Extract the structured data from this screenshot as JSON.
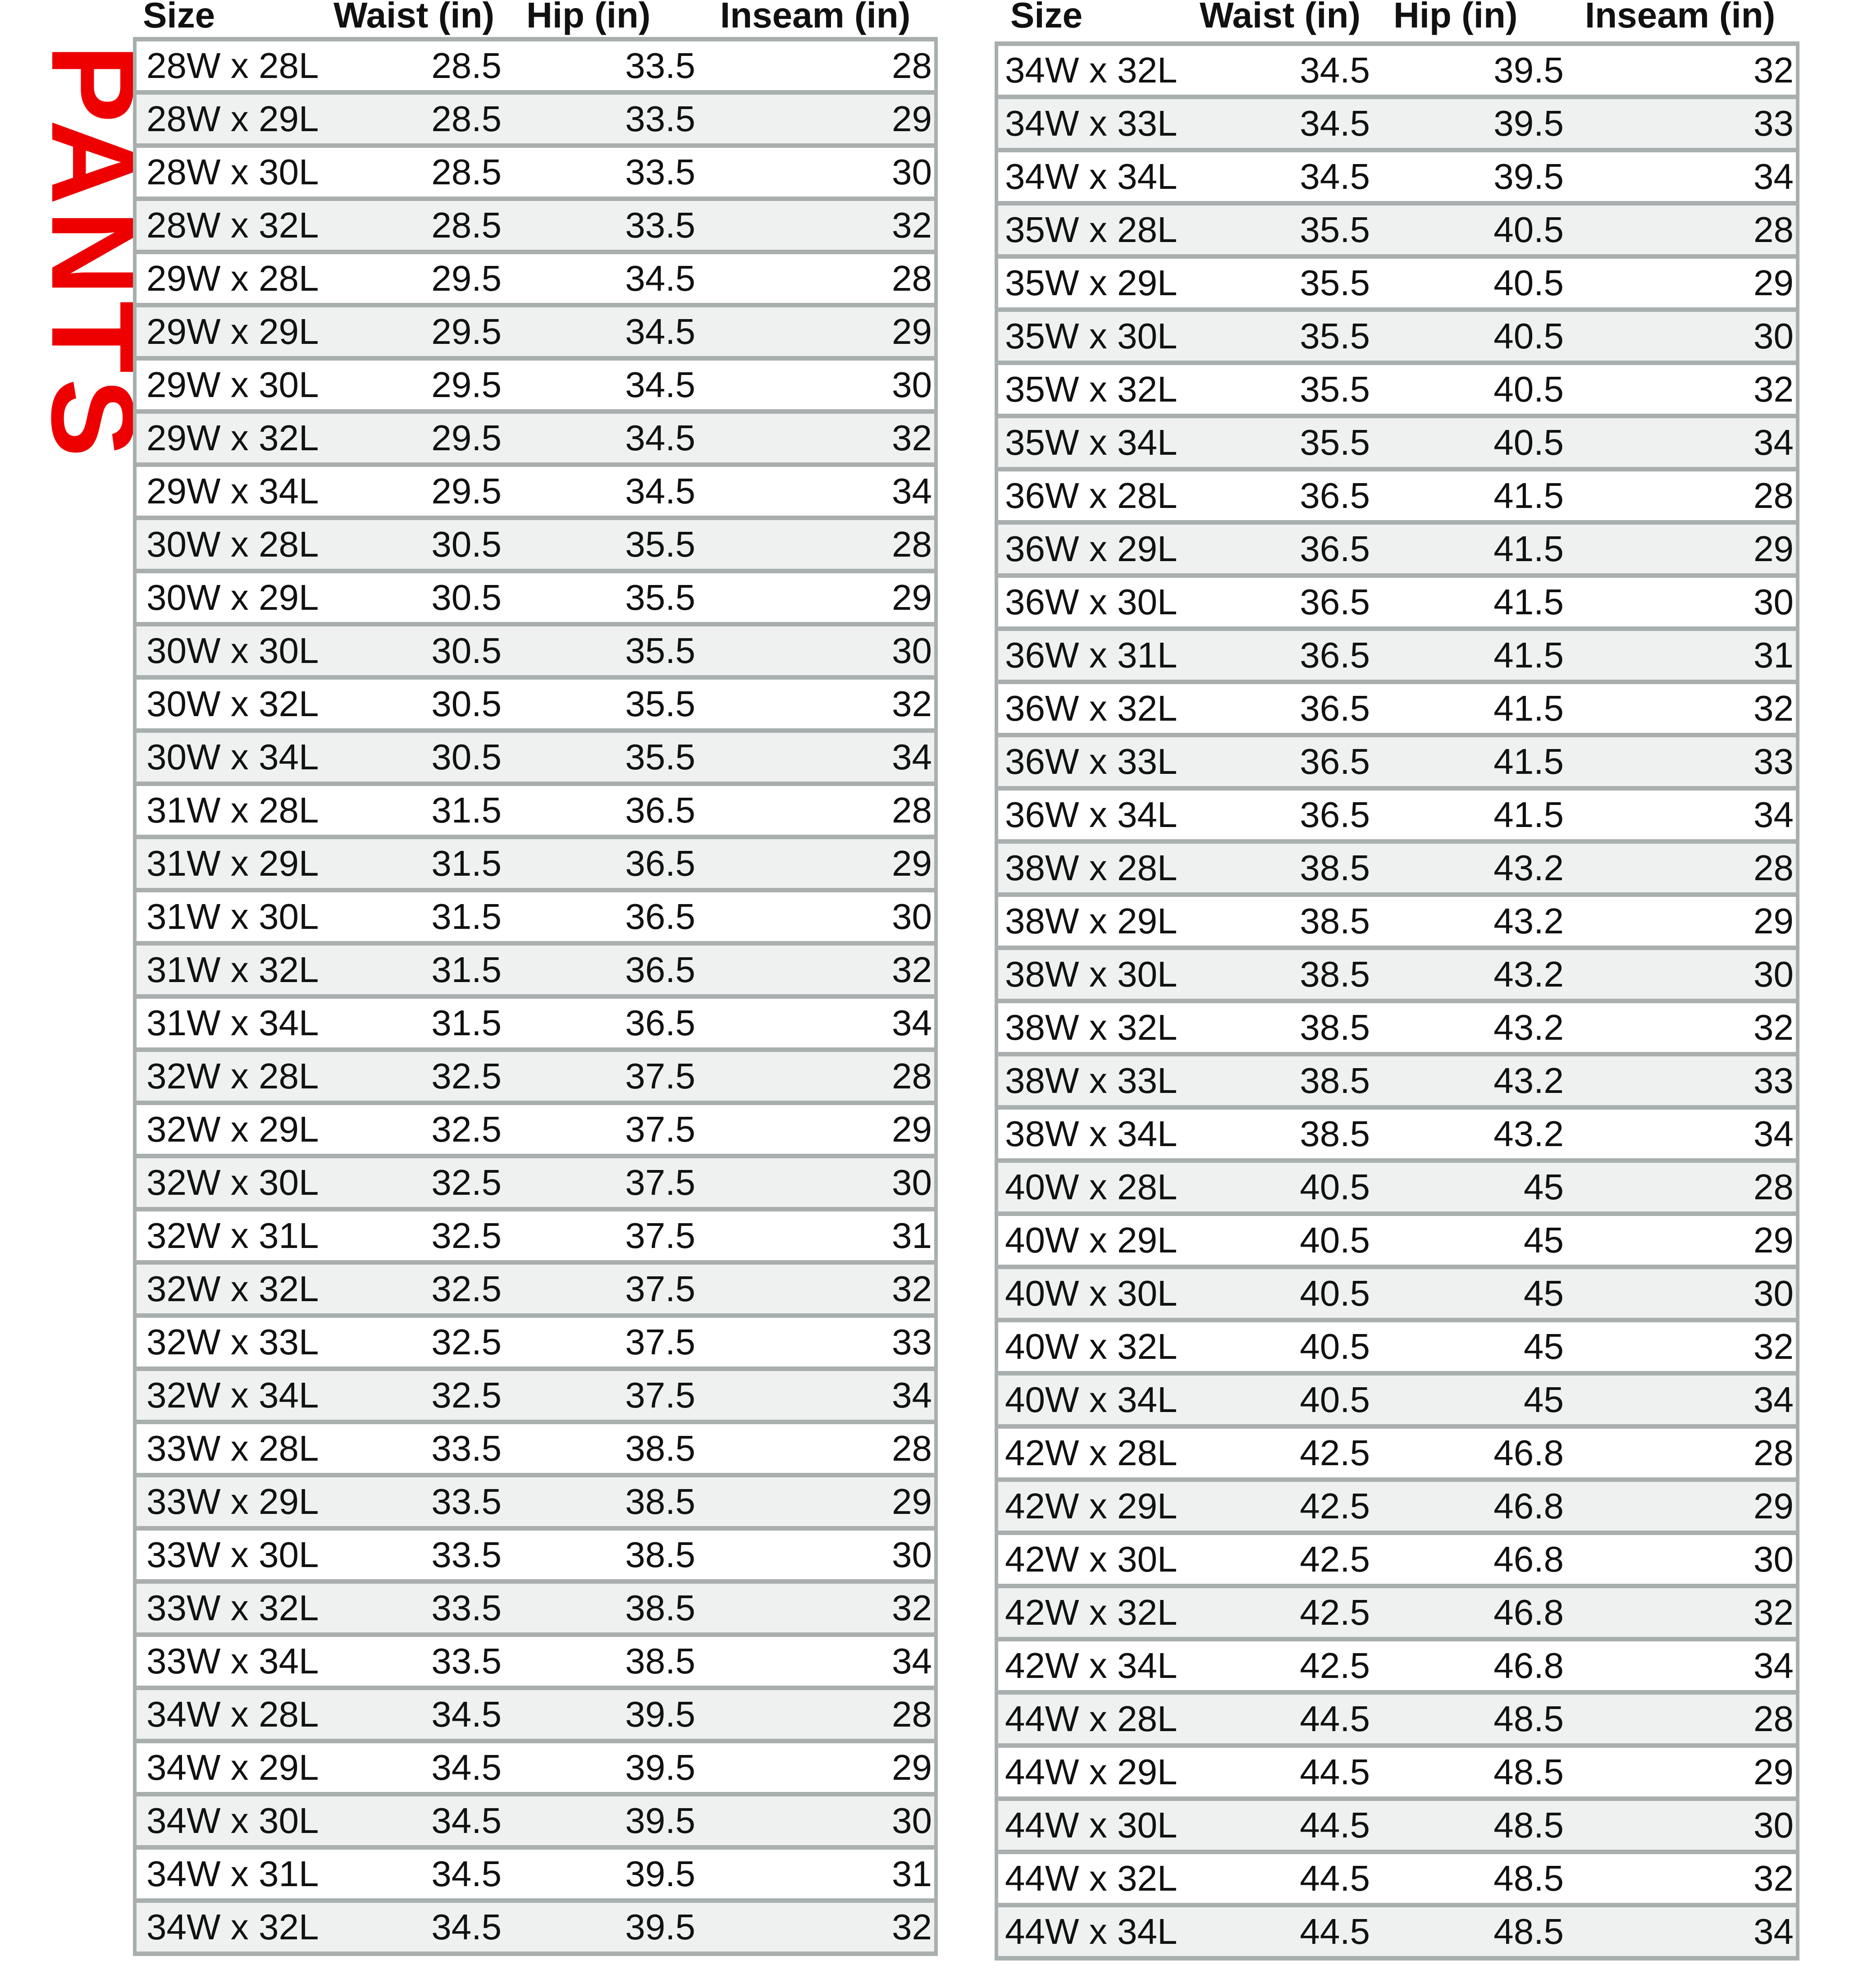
{
  "title": "PANTS",
  "colors": {
    "title": "#ee0000",
    "stripe": "#eef1f0",
    "border": "#a9aeae"
  },
  "headers": [
    "Size",
    "Waist (in)",
    "Hip (in)",
    "Inseam (in)"
  ],
  "left_table": [
    [
      "28W x 28L",
      "28.5",
      "33.5",
      "28"
    ],
    [
      "28W x 29L",
      "28.5",
      "33.5",
      "29"
    ],
    [
      "28W x 30L",
      "28.5",
      "33.5",
      "30"
    ],
    [
      "28W x 32L",
      "28.5",
      "33.5",
      "32"
    ],
    [
      "29W x 28L",
      "29.5",
      "34.5",
      "28"
    ],
    [
      "29W x 29L",
      "29.5",
      "34.5",
      "29"
    ],
    [
      "29W x 30L",
      "29.5",
      "34.5",
      "30"
    ],
    [
      "29W x 32L",
      "29.5",
      "34.5",
      "32"
    ],
    [
      "29W x 34L",
      "29.5",
      "34.5",
      "34"
    ],
    [
      "30W x 28L",
      "30.5",
      "35.5",
      "28"
    ],
    [
      "30W x 29L",
      "30.5",
      "35.5",
      "29"
    ],
    [
      "30W x 30L",
      "30.5",
      "35.5",
      "30"
    ],
    [
      "30W x 32L",
      "30.5",
      "35.5",
      "32"
    ],
    [
      "30W x 34L",
      "30.5",
      "35.5",
      "34"
    ],
    [
      "31W x 28L",
      "31.5",
      "36.5",
      "28"
    ],
    [
      "31W x 29L",
      "31.5",
      "36.5",
      "29"
    ],
    [
      "31W x 30L",
      "31.5",
      "36.5",
      "30"
    ],
    [
      "31W x 32L",
      "31.5",
      "36.5",
      "32"
    ],
    [
      "31W x 34L",
      "31.5",
      "36.5",
      "34"
    ],
    [
      "32W x 28L",
      "32.5",
      "37.5",
      "28"
    ],
    [
      "32W x 29L",
      "32.5",
      "37.5",
      "29"
    ],
    [
      "32W x 30L",
      "32.5",
      "37.5",
      "30"
    ],
    [
      "32W x 31L",
      "32.5",
      "37.5",
      "31"
    ],
    [
      "32W x 32L",
      "32.5",
      "37.5",
      "32"
    ],
    [
      "32W x 33L",
      "32.5",
      "37.5",
      "33"
    ],
    [
      "32W x 34L",
      "32.5",
      "37.5",
      "34"
    ],
    [
      "33W x 28L",
      "33.5",
      "38.5",
      "28"
    ],
    [
      "33W x 29L",
      "33.5",
      "38.5",
      "29"
    ],
    [
      "33W x 30L",
      "33.5",
      "38.5",
      "30"
    ],
    [
      "33W x 32L",
      "33.5",
      "38.5",
      "32"
    ],
    [
      "33W x 34L",
      "33.5",
      "38.5",
      "34"
    ],
    [
      "34W x 28L",
      "34.5",
      "39.5",
      "28"
    ],
    [
      "34W x 29L",
      "34.5",
      "39.5",
      "29"
    ],
    [
      "34W x 30L",
      "34.5",
      "39.5",
      "30"
    ],
    [
      "34W x 31L",
      "34.5",
      "39.5",
      "31"
    ],
    [
      "34W x 32L",
      "34.5",
      "39.5",
      "32"
    ]
  ],
  "right_table": [
    [
      "34W x 32L",
      "34.5",
      "39.5",
      "32"
    ],
    [
      "34W x 33L",
      "34.5",
      "39.5",
      "33"
    ],
    [
      "34W x 34L",
      "34.5",
      "39.5",
      "34"
    ],
    [
      "35W x 28L",
      "35.5",
      "40.5",
      "28"
    ],
    [
      "35W x 29L",
      "35.5",
      "40.5",
      "29"
    ],
    [
      "35W x 30L",
      "35.5",
      "40.5",
      "30"
    ],
    [
      "35W x 32L",
      "35.5",
      "40.5",
      "32"
    ],
    [
      "35W x 34L",
      "35.5",
      "40.5",
      "34"
    ],
    [
      "36W x 28L",
      "36.5",
      "41.5",
      "28"
    ],
    [
      "36W x 29L",
      "36.5",
      "41.5",
      "29"
    ],
    [
      "36W x 30L",
      "36.5",
      "41.5",
      "30"
    ],
    [
      "36W x 31L",
      "36.5",
      "41.5",
      "31"
    ],
    [
      "36W x 32L",
      "36.5",
      "41.5",
      "32"
    ],
    [
      "36W x 33L",
      "36.5",
      "41.5",
      "33"
    ],
    [
      "36W x 34L",
      "36.5",
      "41.5",
      "34"
    ],
    [
      "38W x 28L",
      "38.5",
      "43.2",
      "28"
    ],
    [
      "38W x 29L",
      "38.5",
      "43.2",
      "29"
    ],
    [
      "38W x 30L",
      "38.5",
      "43.2",
      "30"
    ],
    [
      "38W x 32L",
      "38.5",
      "43.2",
      "32"
    ],
    [
      "38W x 33L",
      "38.5",
      "43.2",
      "33"
    ],
    [
      "38W x 34L",
      "38.5",
      "43.2",
      "34"
    ],
    [
      "40W x 28L",
      "40.5",
      "45",
      "28"
    ],
    [
      "40W x 29L",
      "40.5",
      "45",
      "29"
    ],
    [
      "40W x 30L",
      "40.5",
      "45",
      "30"
    ],
    [
      "40W x 32L",
      "40.5",
      "45",
      "32"
    ],
    [
      "40W x 34L",
      "40.5",
      "45",
      "34"
    ],
    [
      "42W x 28L",
      "42.5",
      "46.8",
      "28"
    ],
    [
      "42W x 29L",
      "42.5",
      "46.8",
      "29"
    ],
    [
      "42W x 30L",
      "42.5",
      "46.8",
      "30"
    ],
    [
      "42W x 32L",
      "42.5",
      "46.8",
      "32"
    ],
    [
      "42W x 34L",
      "42.5",
      "46.8",
      "34"
    ],
    [
      "44W x 28L",
      "44.5",
      "48.5",
      "28"
    ],
    [
      "44W x 29L",
      "44.5",
      "48.5",
      "29"
    ],
    [
      "44W x 30L",
      "44.5",
      "48.5",
      "30"
    ],
    [
      "44W x 32L",
      "44.5",
      "48.5",
      "32"
    ],
    [
      "44W x 34L",
      "44.5",
      "48.5",
      "34"
    ]
  ]
}
